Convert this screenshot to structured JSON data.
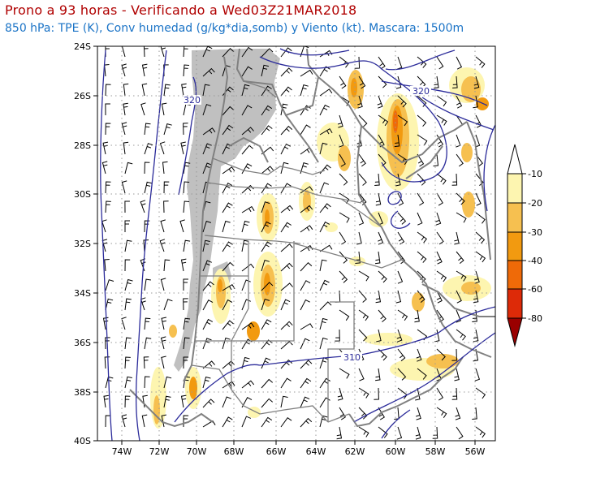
{
  "title_line1": "Prono a 93 horas - Verificando a Wed03Z21MAR2018",
  "title_line2": "850 hPa: TPE (K), Conv humedad (g/kg*dia,somb) y Viento (kt). Mascara: 1500m",
  "map": {
    "lon_labels": [
      "74W",
      "72W",
      "70W",
      "68W",
      "66W",
      "64W",
      "62W",
      "60W",
      "58W",
      "56W"
    ],
    "lat_labels": [
      "24S",
      "26S",
      "28S",
      "30S",
      "32S",
      "34S",
      "36S",
      "38S",
      "40S"
    ],
    "contour_labels": [
      "320",
      "320",
      "310"
    ],
    "colors": {
      "mask": "#c0c0c0",
      "theta_e_contour": "#2b2b9a",
      "borders": "#808080"
    }
  },
  "legend": {
    "labels": [
      "-10",
      "-20",
      "-30",
      "-40",
      "-60",
      "-80"
    ],
    "colors": [
      "#fdf5b0",
      "#f6c050",
      "#f29a10",
      "#ef6a08",
      "#dd2a08",
      "#9a0000"
    ]
  }
}
